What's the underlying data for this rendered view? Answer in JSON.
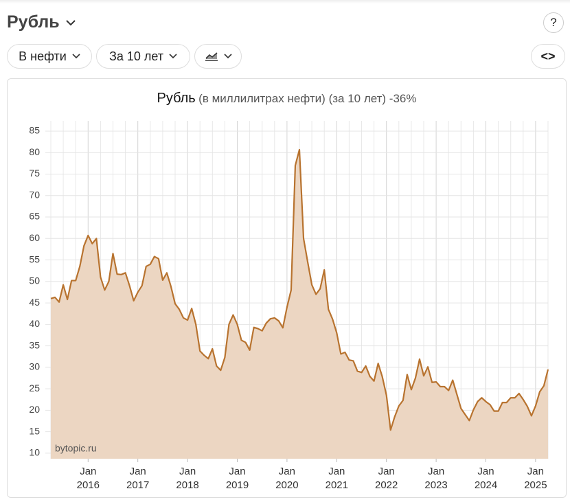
{
  "header": {
    "title": "Рубль",
    "help": "?"
  },
  "controls": {
    "unit": "В нефти",
    "period": "За 10 лет",
    "embed": "<>"
  },
  "chart_data": {
    "type": "line",
    "title": "Рубль",
    "subtitle": "(в миллилитрах нефти) (за 10 лет) -36%",
    "watermark": "bytopic.ru",
    "x": [
      "2015-04",
      "2015-05",
      "2015-06",
      "2015-07",
      "2015-08",
      "2015-09",
      "2015-10",
      "2015-11",
      "2015-12",
      "2016-01",
      "2016-02",
      "2016-03",
      "2016-04",
      "2016-05",
      "2016-06",
      "2016-07",
      "2016-08",
      "2016-09",
      "2016-10",
      "2016-11",
      "2016-12",
      "2017-01",
      "2017-02",
      "2017-03",
      "2017-04",
      "2017-05",
      "2017-06",
      "2017-07",
      "2017-08",
      "2017-09",
      "2017-10",
      "2017-11",
      "2017-12",
      "2018-01",
      "2018-02",
      "2018-03",
      "2018-04",
      "2018-05",
      "2018-06",
      "2018-07",
      "2018-08",
      "2018-09",
      "2018-10",
      "2018-11",
      "2018-12",
      "2019-01",
      "2019-02",
      "2019-03",
      "2019-04",
      "2019-05",
      "2019-06",
      "2019-07",
      "2019-08",
      "2019-09",
      "2019-10",
      "2019-11",
      "2019-12",
      "2020-01",
      "2020-02",
      "2020-03",
      "2020-04",
      "2020-05",
      "2020-06",
      "2020-07",
      "2020-08",
      "2020-09",
      "2020-10",
      "2020-11",
      "2020-12",
      "2021-01",
      "2021-02",
      "2021-03",
      "2021-04",
      "2021-05",
      "2021-06",
      "2021-07",
      "2021-08",
      "2021-09",
      "2021-10",
      "2021-11",
      "2021-12",
      "2022-01",
      "2022-02",
      "2022-03",
      "2022-04",
      "2022-05",
      "2022-06",
      "2022-07",
      "2022-08",
      "2022-09",
      "2022-10",
      "2022-11",
      "2022-12",
      "2023-01",
      "2023-02",
      "2023-03",
      "2023-04",
      "2023-05",
      "2023-06",
      "2023-07",
      "2023-08",
      "2023-09",
      "2023-10",
      "2023-11",
      "2023-12",
      "2024-01",
      "2024-02",
      "2024-03",
      "2024-04",
      "2024-05",
      "2024-06",
      "2024-07",
      "2024-08",
      "2024-09",
      "2024-10",
      "2024-11",
      "2024-12",
      "2025-01",
      "2025-02",
      "2025-03",
      "2025-04"
    ],
    "series": [
      {
        "name": "Рубль",
        "color": "#b8732f",
        "fill": "#ecd6c2",
        "values": [
          46,
          46.3,
          45.2,
          49.2,
          45.8,
          50.2,
          50.2,
          53.5,
          58.3,
          60.7,
          58.8,
          60,
          51,
          48,
          50,
          56.5,
          51.7,
          51.6,
          52,
          49,
          45.5,
          47.5,
          49,
          53.5,
          54,
          55.8,
          55.3,
          50.3,
          52,
          48.8,
          44.8,
          43.5,
          41.5,
          41,
          43.7,
          40,
          33.8,
          32.8,
          32,
          34.3,
          30.3,
          29.3,
          32.3,
          40,
          42.2,
          40,
          36.3,
          35.8,
          34,
          39.3,
          39,
          38.5,
          40.3,
          41.3,
          41.5,
          40.8,
          39.2,
          44,
          48,
          77,
          80.7,
          60,
          54.5,
          49.2,
          47,
          48.3,
          52.7,
          43.5,
          41.2,
          38,
          33.1,
          33.5,
          31.7,
          31.5,
          29.1,
          28.8,
          30.3,
          27.9,
          26.8,
          30.9,
          27.8,
          23.5,
          15.4,
          18.5,
          21,
          22.3,
          28.3,
          24.8,
          27.5,
          31.9,
          28,
          30.1,
          26.5,
          26.6,
          25.5,
          25.5,
          24.6,
          27,
          23.7,
          20.4,
          19,
          17.6,
          20.1,
          22,
          22.9,
          22,
          21.3,
          19.8,
          19.8,
          21.8,
          21.8,
          22.9,
          22.9,
          23.9,
          22.5,
          20.9,
          18.7,
          21,
          24.3,
          25.7,
          29.5
        ]
      }
    ],
    "ylim": [
      8.7,
      87.4
    ],
    "yticks": [
      10,
      15,
      20,
      25,
      30,
      35,
      40,
      45,
      50,
      55,
      60,
      65,
      70,
      75,
      80,
      85
    ],
    "xticks": [
      {
        "value": "2016-01",
        "label": "Jan 2016"
      },
      {
        "value": "2017-01",
        "label": "Jan 2017"
      },
      {
        "value": "2018-01",
        "label": "Jan 2018"
      },
      {
        "value": "2019-01",
        "label": "Jan 2019"
      },
      {
        "value": "2020-01",
        "label": "Jan 2020"
      },
      {
        "value": "2021-01",
        "label": "Jan 2021"
      },
      {
        "value": "2022-01",
        "label": "Jan 2022"
      },
      {
        "value": "2023-01",
        "label": "Jan 2023"
      },
      {
        "value": "2024-01",
        "label": "Jan 2024"
      },
      {
        "value": "2025-01",
        "label": "Jan 2025"
      }
    ],
    "grid": true
  }
}
